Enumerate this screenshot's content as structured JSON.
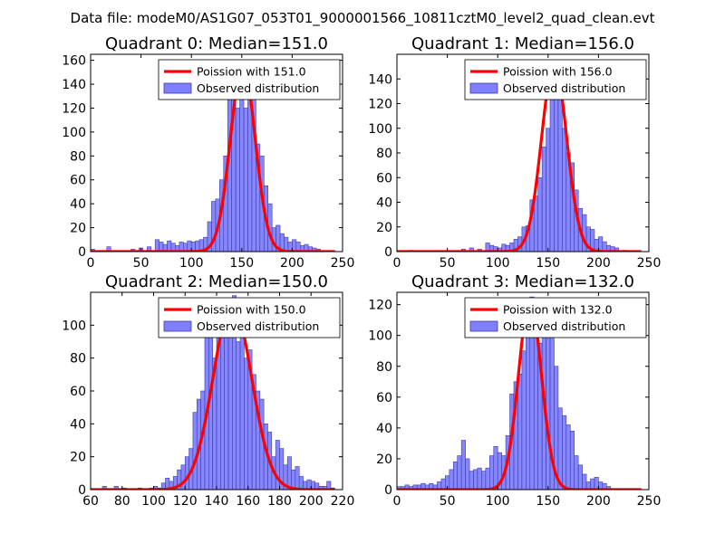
{
  "figure_title": "Data file: modeM0/AS1G07_053T01_9000001566_10811cztM0_level2_quad_clean.evt",
  "chart_data": [
    {
      "type": "bar",
      "title": "Quadrant 0: Median=151.0",
      "xlim": [
        0,
        250
      ],
      "ylim": [
        0,
        165
      ],
      "xticks": [
        0,
        50,
        100,
        150,
        200,
        250
      ],
      "yticks": [
        0,
        20,
        40,
        60,
        80,
        100,
        120,
        140,
        160
      ],
      "legend": [
        "Poission with 151.0",
        "Observed distribution"
      ],
      "legend_position": "top-right",
      "poisson_mean": 151.0,
      "poisson_peak": 156,
      "poisson_sigma": 12.3,
      "bin_width": 4,
      "bins": [
        [
          0,
          2
        ],
        [
          16,
          4
        ],
        [
          40,
          2
        ],
        [
          48,
          3
        ],
        [
          56,
          4
        ],
        [
          64,
          10
        ],
        [
          68,
          8
        ],
        [
          72,
          6
        ],
        [
          76,
          9
        ],
        [
          80,
          7
        ],
        [
          84,
          5
        ],
        [
          88,
          8
        ],
        [
          92,
          7
        ],
        [
          96,
          9
        ],
        [
          100,
          8
        ],
        [
          104,
          9
        ],
        [
          108,
          10
        ],
        [
          112,
          12
        ],
        [
          116,
          25
        ],
        [
          120,
          42
        ],
        [
          124,
          44
        ],
        [
          128,
          60
        ],
        [
          132,
          80
        ],
        [
          136,
          127
        ],
        [
          140,
          135
        ],
        [
          144,
          120
        ],
        [
          148,
          158
        ],
        [
          152,
          120
        ],
        [
          156,
          145
        ],
        [
          160,
          130
        ],
        [
          164,
          90
        ],
        [
          168,
          80
        ],
        [
          172,
          55
        ],
        [
          176,
          40
        ],
        [
          180,
          20
        ],
        [
          184,
          22
        ],
        [
          188,
          15
        ],
        [
          192,
          12
        ],
        [
          196,
          8
        ],
        [
          200,
          10
        ],
        [
          204,
          8
        ],
        [
          208,
          5
        ],
        [
          212,
          6
        ],
        [
          216,
          4
        ],
        [
          220,
          3
        ],
        [
          224,
          2
        ]
      ]
    },
    {
      "type": "bar",
      "title": "Quadrant 1: Median=156.0",
      "xlim": [
        0,
        250
      ],
      "ylim": [
        0,
        160
      ],
      "xticks": [
        0,
        50,
        100,
        150,
        200,
        250
      ],
      "yticks": [
        0,
        20,
        40,
        60,
        80,
        100,
        120,
        140
      ],
      "legend": [
        "Poission with 156.0",
        "Observed distribution"
      ],
      "legend_position": "top-right",
      "poisson_mean": 156.0,
      "poisson_peak": 152,
      "poisson_sigma": 12.5,
      "bin_width": 4,
      "bins": [
        [
          12,
          1
        ],
        [
          64,
          2
        ],
        [
          72,
          3
        ],
        [
          80,
          2
        ],
        [
          88,
          7
        ],
        [
          92,
          5
        ],
        [
          96,
          4
        ],
        [
          100,
          3
        ],
        [
          104,
          6
        ],
        [
          108,
          5
        ],
        [
          112,
          7
        ],
        [
          116,
          10
        ],
        [
          120,
          12
        ],
        [
          124,
          20
        ],
        [
          128,
          21
        ],
        [
          132,
          42
        ],
        [
          136,
          45
        ],
        [
          140,
          60
        ],
        [
          144,
          85
        ],
        [
          148,
          100
        ],
        [
          152,
          130
        ],
        [
          156,
          150
        ],
        [
          160,
          140
        ],
        [
          164,
          100
        ],
        [
          168,
          80
        ],
        [
          172,
          72
        ],
        [
          176,
          50
        ],
        [
          180,
          35
        ],
        [
          184,
          30
        ],
        [
          188,
          20
        ],
        [
          192,
          18
        ],
        [
          196,
          10
        ],
        [
          200,
          12
        ],
        [
          204,
          8
        ],
        [
          208,
          5
        ],
        [
          212,
          4
        ],
        [
          216,
          3
        ],
        [
          224,
          1
        ]
      ]
    },
    {
      "type": "bar",
      "title": "Quadrant 2: Median=150.0",
      "xlim": [
        60,
        220
      ],
      "ylim": [
        0,
        120
      ],
      "xticks": [
        60,
        80,
        100,
        120,
        140,
        160,
        180,
        200,
        220
      ],
      "yticks": [
        0,
        20,
        40,
        60,
        80,
        100
      ],
      "legend": [
        "Poission with 150.0",
        "Observed distribution"
      ],
      "legend_position": "top-right",
      "poisson_mean": 150.0,
      "poisson_peak": 113,
      "poisson_sigma": 12.2,
      "bin_width": 2.5,
      "bins": [
        [
          67.5,
          2
        ],
        [
          75,
          2
        ],
        [
          80,
          1
        ],
        [
          90,
          1
        ],
        [
          97.5,
          1
        ],
        [
          100,
          2
        ],
        [
          102.5,
          1
        ],
        [
          105,
          4
        ],
        [
          107.5,
          7
        ],
        [
          110,
          5
        ],
        [
          112.5,
          8
        ],
        [
          115,
          12
        ],
        [
          117.5,
          15
        ],
        [
          120,
          20
        ],
        [
          122.5,
          25
        ],
        [
          125,
          47
        ],
        [
          127.5,
          55
        ],
        [
          130,
          60
        ],
        [
          132.5,
          100
        ],
        [
          135,
          110
        ],
        [
          137.5,
          80
        ],
        [
          140,
          95
        ],
        [
          142.5,
          100
        ],
        [
          145,
          105
        ],
        [
          147.5,
          100
        ],
        [
          150,
          118
        ],
        [
          152.5,
          90
        ],
        [
          155,
          100
        ],
        [
          157.5,
          80
        ],
        [
          160,
          85
        ],
        [
          162.5,
          70
        ],
        [
          165,
          60
        ],
        [
          167.5,
          55
        ],
        [
          170,
          40
        ],
        [
          172.5,
          35
        ],
        [
          175,
          20
        ],
        [
          177.5,
          30
        ],
        [
          180,
          25
        ],
        [
          182.5,
          15
        ],
        [
          185,
          20
        ],
        [
          187.5,
          12
        ],
        [
          190,
          14
        ],
        [
          192.5,
          8
        ],
        [
          195,
          5
        ],
        [
          197.5,
          6
        ],
        [
          200,
          5
        ],
        [
          202.5,
          4
        ],
        [
          205,
          2
        ],
        [
          207.5,
          2
        ],
        [
          210,
          5
        ],
        [
          212.5,
          1
        ]
      ]
    },
    {
      "type": "bar",
      "title": "Quadrant 3: Median=132.0",
      "xlim": [
        0,
        250
      ],
      "ylim": [
        0,
        128
      ],
      "xticks": [
        0,
        50,
        100,
        150,
        200,
        250
      ],
      "yticks": [
        0,
        20,
        40,
        60,
        80,
        100,
        120
      ],
      "legend": [
        "Poission with 132.0",
        "Observed distribution"
      ],
      "legend_position": "top-right",
      "poisson_mean": 132.0,
      "poisson_peak": 122,
      "poisson_sigma": 11.5,
      "bin_width": 4,
      "bins": [
        [
          0,
          2
        ],
        [
          4,
          2
        ],
        [
          8,
          3
        ],
        [
          12,
          2
        ],
        [
          16,
          3
        ],
        [
          20,
          3
        ],
        [
          24,
          4
        ],
        [
          28,
          3
        ],
        [
          32,
          4
        ],
        [
          36,
          3
        ],
        [
          40,
          5
        ],
        [
          44,
          7
        ],
        [
          48,
          9
        ],
        [
          52,
          13
        ],
        [
          56,
          18
        ],
        [
          60,
          22
        ],
        [
          64,
          32
        ],
        [
          68,
          20
        ],
        [
          72,
          12
        ],
        [
          76,
          13
        ],
        [
          80,
          14
        ],
        [
          84,
          12
        ],
        [
          88,
          14
        ],
        [
          92,
          22
        ],
        [
          96,
          28
        ],
        [
          100,
          24
        ],
        [
          104,
          22
        ],
        [
          108,
          35
        ],
        [
          112,
          62
        ],
        [
          116,
          70
        ],
        [
          120,
          75
        ],
        [
          124,
          90
        ],
        [
          128,
          108
        ],
        [
          132,
          125
        ],
        [
          136,
          107
        ],
        [
          140,
          95
        ],
        [
          144,
          115
        ],
        [
          148,
          100
        ],
        [
          152,
          105
        ],
        [
          156,
          80
        ],
        [
          160,
          53
        ],
        [
          164,
          48
        ],
        [
          168,
          42
        ],
        [
          172,
          38
        ],
        [
          176,
          22
        ],
        [
          180,
          16
        ],
        [
          184,
          10
        ],
        [
          188,
          5
        ],
        [
          192,
          7
        ],
        [
          196,
          8
        ],
        [
          200,
          5
        ],
        [
          204,
          4
        ],
        [
          208,
          2
        ]
      ]
    }
  ]
}
